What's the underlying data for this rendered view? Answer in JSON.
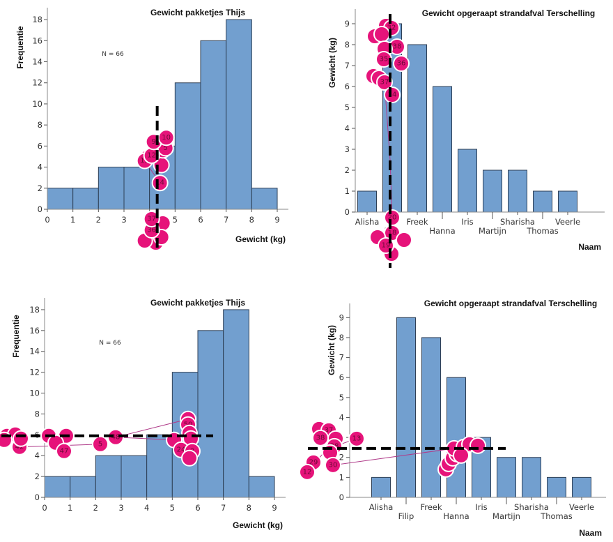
{
  "chart_data": [
    {
      "id": "hist-top",
      "type": "bar",
      "subtype": "histogram",
      "title": "Gewicht pakketjes Thijs",
      "xlabel": "Gewicht (kg)",
      "ylabel": "Frequentie",
      "annotation": "N = 66",
      "bin_edges": [
        0,
        1,
        2,
        3,
        4,
        5,
        6,
        7,
        8,
        9
      ],
      "values": [
        2,
        2,
        4,
        4,
        6,
        12,
        16,
        18,
        2
      ],
      "xlim": [
        0,
        9
      ],
      "ylim": [
        0,
        19
      ],
      "xticks": [
        "0",
        "1",
        "2",
        "3",
        "4",
        "5",
        "6",
        "7",
        "8",
        "9"
      ],
      "yticks": [
        "0",
        "2",
        "4",
        "6",
        "8",
        "10",
        "12",
        "14",
        "16",
        "18"
      ],
      "overlay": {
        "dashed_line": {
          "orientation": "vertical",
          "x": 4.3,
          "y_from": -3.8,
          "y_to": 9.8
        },
        "fixation_labels": [
          "10",
          "9",
          "5",
          "12",
          "13",
          "14",
          "37",
          "36"
        ]
      }
    },
    {
      "id": "bar-top",
      "type": "bar",
      "title": "Gewicht opgeraapt strandafval Terschelling",
      "xlabel": "Naam",
      "ylabel": "Gewicht (kg)",
      "categories": [
        "Alisha",
        "Filip",
        "Freek",
        "Hanna",
        "Iris",
        "Martijn",
        "Sharisha",
        "Thomas",
        "Veerle"
      ],
      "values": [
        1,
        9,
        8,
        6,
        3,
        2,
        2,
        1,
        1
      ],
      "ylim": [
        0,
        9.5
      ],
      "yticks": [
        "0",
        "1",
        "2",
        "3",
        "4",
        "5",
        "6",
        "7",
        "8",
        "9"
      ],
      "overlay": {
        "dashed_line": {
          "orientation": "vertical",
          "category_index": 1,
          "y_from": -2.7,
          "y_to": 9.4
        },
        "fixation_labels": [
          "32",
          "38",
          "35",
          "36",
          "37",
          "34",
          "20",
          "18",
          "19"
        ]
      }
    },
    {
      "id": "hist-bottom",
      "type": "bar",
      "subtype": "histogram",
      "title": "Gewicht pakketjes Thijs",
      "xlabel": "Gewicht (kg)",
      "ylabel": "Frequentie",
      "annotation": "N = 66",
      "bin_edges": [
        0,
        1,
        2,
        3,
        4,
        5,
        6,
        7,
        8,
        9
      ],
      "values": [
        2,
        2,
        4,
        4,
        6,
        12,
        16,
        18,
        2
      ],
      "xlim": [
        0,
        9
      ],
      "ylim": [
        0,
        19
      ],
      "xticks": [
        "0",
        "1",
        "2",
        "3",
        "4",
        "5",
        "6",
        "7",
        "8",
        "9"
      ],
      "yticks": [
        "0",
        "2",
        "4",
        "6",
        "8",
        "10",
        "12",
        "14",
        "16",
        "18"
      ],
      "overlay": {
        "dashed_line": {
          "orientation": "horizontal",
          "y": 5.9,
          "x_from": -1.7,
          "x_to": 6.6
        },
        "fixation_labels": [
          "42",
          "47",
          "5",
          "48",
          "50",
          "24",
          "3"
        ]
      }
    },
    {
      "id": "bar-bottom",
      "type": "bar",
      "title": "Gewicht opgeraapt strandafval Terschelling",
      "xlabel": "Naam",
      "ylabel": "Gewicht (kg)",
      "categories": [
        "Alisha",
        "Filip",
        "Freek",
        "Hanna",
        "Iris",
        "Martijn",
        "Sharisha",
        "Thomas",
        "Veerle"
      ],
      "values": [
        1,
        9,
        8,
        6,
        3,
        2,
        2,
        1,
        1
      ],
      "ylim": [
        0,
        9.5
      ],
      "yticks": [
        "0",
        "1",
        "2",
        "3",
        "4",
        "5",
        "6",
        "7",
        "8",
        "9"
      ],
      "overlay": {
        "dashed_line": {
          "orientation": "horizontal",
          "y": 2.45,
          "x_from_category": -2.4,
          "x_to_category": 4.8
        },
        "fixation_labels": [
          "37",
          "38",
          "13",
          "28",
          "29",
          "30",
          "12"
        ]
      }
    }
  ],
  "colors": {
    "bar_fill": "#729fcf",
    "bar_stroke": "#2e3f55",
    "fixation": "#e6137a",
    "dashed_line": "#000000"
  }
}
